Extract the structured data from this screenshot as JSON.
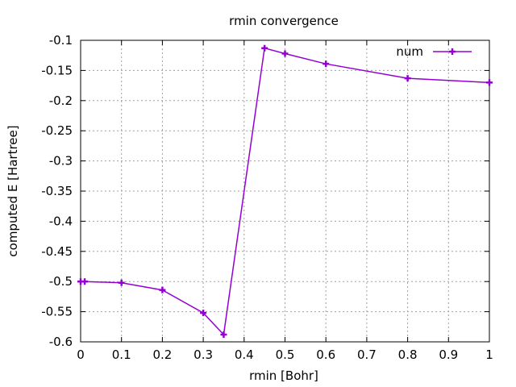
{
  "chart_data": {
    "type": "line",
    "title": "rmin convergence",
    "xlabel": "rmin [Bohr]",
    "ylabel": "computed E [Hartree]",
    "xlim": [
      0,
      1
    ],
    "ylim": [
      -0.6,
      -0.1
    ],
    "xticks": [
      "0",
      "0.1",
      "0.2",
      "0.3",
      "0.4",
      "0.5",
      "0.6",
      "0.7",
      "0.8",
      "0.9",
      "1"
    ],
    "yticks": [
      "-0.1",
      "-0.15",
      "-0.2",
      "-0.25",
      "-0.3",
      "-0.35",
      "-0.4",
      "-0.45",
      "-0.5",
      "-0.55",
      "-0.6"
    ],
    "grid": true,
    "legend_position": "top-right",
    "series": [
      {
        "name": "num",
        "color": "#9400d3",
        "marker": "plus",
        "x": [
          0.0,
          0.01,
          0.1,
          0.2,
          0.3,
          0.35,
          0.45,
          0.5,
          0.6,
          0.8,
          1.0
        ],
        "y": [
          -0.5,
          -0.5,
          -0.502,
          -0.514,
          -0.552,
          -0.588,
          -0.113,
          -0.122,
          -0.139,
          -0.163,
          -0.17
        ]
      }
    ]
  }
}
